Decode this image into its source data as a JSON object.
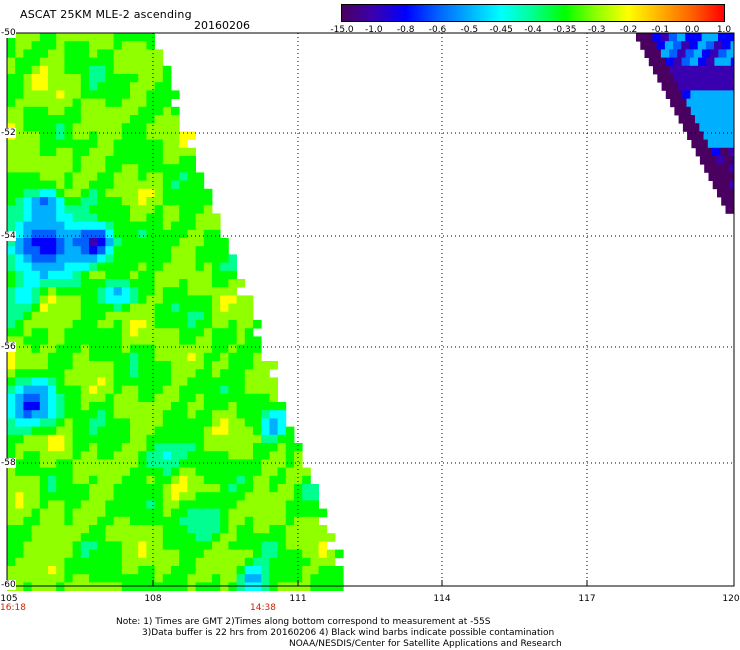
{
  "header": {
    "title": "ASCAT 25KM MLE-2 ascending",
    "date": "20160206"
  },
  "colorbar": {
    "labels": [
      "-15.0",
      "-1.0",
      "-0.8",
      "-0.6",
      "-0.5",
      "-0.45",
      "-0.4",
      "-0.35",
      "-0.3",
      "-0.2",
      "-0.1",
      "0.0",
      "1.0"
    ],
    "colors": [
      "#4a0060",
      "#3a00b0",
      "#0000ff",
      "#0060ff",
      "#00b0ff",
      "#00ffff",
      "#00ff90",
      "#00ff00",
      "#90ff00",
      "#ffff00",
      "#ffb000",
      "#ff6000",
      "#ff0000"
    ]
  },
  "axes": {
    "lon_labels": [
      "105",
      "108",
      "111",
      "114",
      "117",
      "120"
    ],
    "lat_labels": [
      "-50",
      "-52",
      "-54",
      "-56",
      "-58",
      "-60"
    ],
    "time_labels": [
      "16:18",
      "14:38"
    ]
  },
  "notes": {
    "line1": "Note: 1) Times are GMT 2)Times along bottom correspond to measurement at -55S",
    "line2": "3)Data buffer is 22 hrs from 20160206 4) Black wind barbs indicate possible contamination",
    "line3": "NOAA/NESDIS/Center for Satellite Applications and Research"
  },
  "map_meta": {
    "lon_range": [
      105,
      120
    ],
    "lat_range": [
      -60,
      -50
    ]
  }
}
